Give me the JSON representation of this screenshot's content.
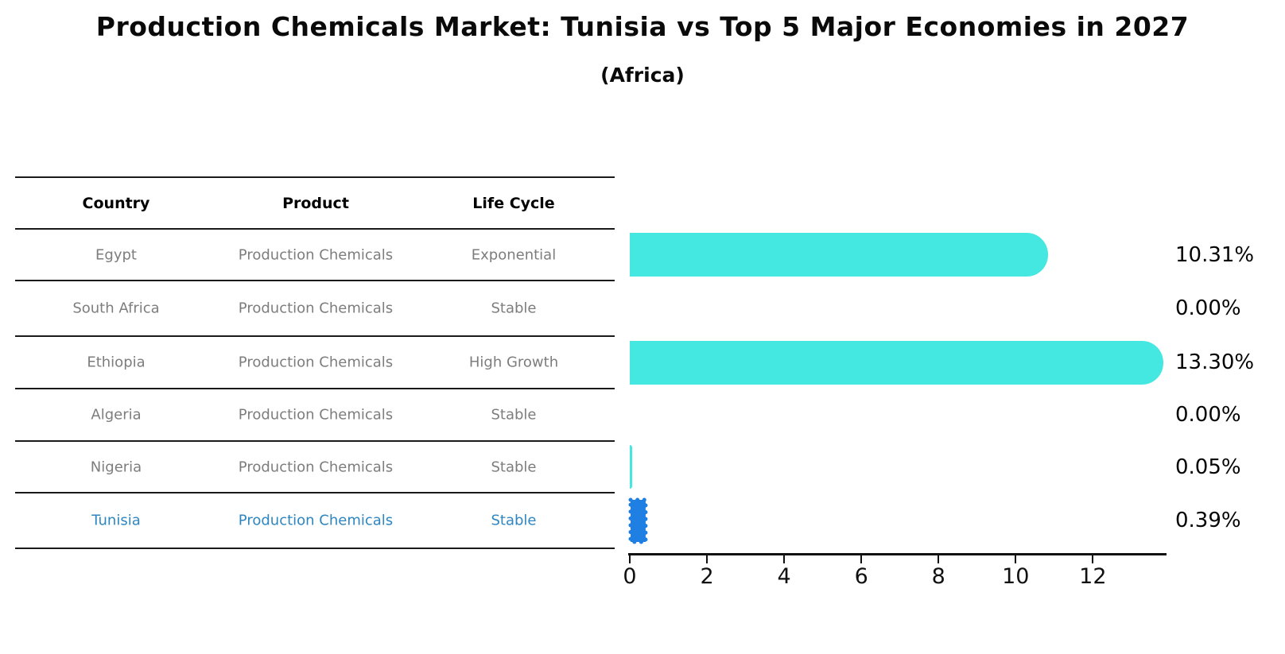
{
  "title": "Production Chemicals Market: Tunisia vs Top 5 Major Economies in 2027",
  "subtitle": "(Africa)",
  "table": {
    "headers": [
      "Country",
      "Product",
      "Life Cycle"
    ],
    "rows": [
      {
        "country": "Egypt",
        "product": "Production Chemicals",
        "life_cycle": "Exponential",
        "highlighted": false
      },
      {
        "country": "South Africa",
        "product": "Production Chemicals",
        "life_cycle": "Stable",
        "highlighted": false
      },
      {
        "country": "Ethiopia",
        "product": "Production Chemicals",
        "life_cycle": "High Growth",
        "highlighted": false
      },
      {
        "country": "Algeria",
        "product": "Production Chemicals",
        "life_cycle": "Stable",
        "highlighted": false
      },
      {
        "country": "Nigeria",
        "product": "Production Chemicals",
        "life_cycle": "Stable",
        "highlighted": false
      },
      {
        "country": "Tunisia",
        "product": "Production Chemicals",
        "life_cycle": "Stable",
        "highlighted": true
      }
    ]
  },
  "chart_data": {
    "type": "bar",
    "orientation": "horizontal",
    "title": "Production Chemicals Market: Tunisia vs Top 5 Major Economies in 2027",
    "subtitle": "(Africa)",
    "categories": [
      "Egypt",
      "South Africa",
      "Ethiopia",
      "Algeria",
      "Nigeria",
      "Tunisia"
    ],
    "values": [
      10.31,
      0.0,
      13.3,
      0.0,
      0.05,
      0.39
    ],
    "value_labels": [
      "10.31%",
      "0.00%",
      "13.30%",
      "0.00%",
      "0.05%",
      "0.39%"
    ],
    "xticks": [
      0,
      2,
      4,
      6,
      8,
      10,
      12
    ],
    "xlim": [
      0,
      13.9
    ],
    "xlabel": "",
    "ylabel": "",
    "grid": false,
    "legend": false,
    "bar_color": "#45e7e1",
    "highlight_bar_color": "#1f7fe3",
    "highlight_index": 5
  },
  "colors": {
    "bar_cyan": "#45e7e1",
    "bar_blue": "#1f7fe3",
    "highlight_text": "#2e86c1",
    "row_text": "#7d7d7d",
    "line": "#1a1a1a"
  }
}
